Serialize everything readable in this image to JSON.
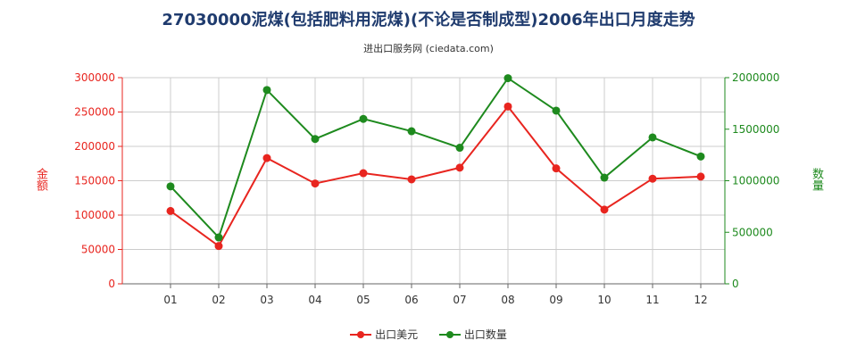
{
  "chart_data": {
    "type": "line",
    "title": "27030000泥煤(包括肥料用泥煤)(不论是否制成型)2006年出口月度走势",
    "subtitle": "进出口服务网 (ciedata.com)",
    "categories": [
      "01",
      "02",
      "03",
      "04",
      "05",
      "06",
      "07",
      "08",
      "09",
      "10",
      "11",
      "12"
    ],
    "y_left": {
      "label": "金额",
      "min": 0,
      "max": 300000,
      "ticks": [
        "0",
        "50000",
        "100000",
        "150000",
        "200000",
        "250000",
        "300000"
      ]
    },
    "y_right": {
      "label": "数量",
      "min": 0,
      "max": 2000000,
      "ticks": [
        "0",
        "500000",
        "1000000",
        "1500000",
        "2000000"
      ]
    },
    "series": [
      {
        "name": "出口美元",
        "axis": "left",
        "color": "#e8251f",
        "values": [
          106000,
          55000,
          183000,
          146000,
          161000,
          152000,
          169000,
          258000,
          168000,
          108000,
          153000,
          156000
        ]
      },
      {
        "name": "出口数量",
        "axis": "right",
        "color": "#1e8a1e",
        "values": [
          945000,
          450000,
          1880000,
          1405000,
          1600000,
          1480000,
          1320000,
          1995000,
          1680000,
          1030000,
          1420000,
          1235000
        ]
      }
    ],
    "grid": true,
    "legend_position": "bottom",
    "axis_colors": {
      "left": "#e8251f",
      "right": "#1e8a1e"
    }
  }
}
